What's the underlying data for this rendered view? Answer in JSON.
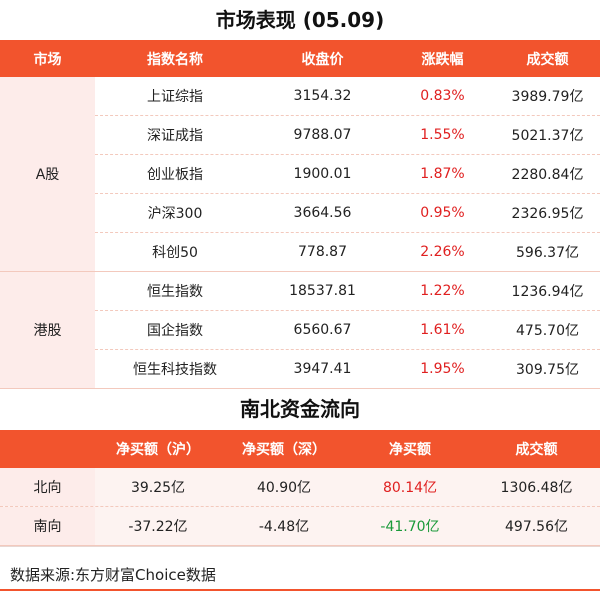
{
  "market": {
    "title": "市场表现 (05.09)",
    "headers": [
      "市场",
      "指数名称",
      "收盘价",
      "涨跌幅",
      "成交额"
    ],
    "groups": [
      {
        "market": "A股",
        "rows": [
          {
            "name": "上证综指",
            "close": "3154.32",
            "change": "0.83%",
            "volume": "3989.79亿",
            "dir": "up"
          },
          {
            "name": "深证成指",
            "close": "9788.07",
            "change": "1.55%",
            "volume": "5021.37亿",
            "dir": "up"
          },
          {
            "name": "创业板指",
            "close": "1900.01",
            "change": "1.87%",
            "volume": "2280.84亿",
            "dir": "up"
          },
          {
            "name": "沪深300",
            "close": "3664.56",
            "change": "0.95%",
            "volume": "2326.95亿",
            "dir": "up"
          },
          {
            "name": "科创50",
            "close": "778.87",
            "change": "2.26%",
            "volume": "596.37亿",
            "dir": "up"
          }
        ]
      },
      {
        "market": "港股",
        "rows": [
          {
            "name": "恒生指数",
            "close": "18537.81",
            "change": "1.22%",
            "volume": "1236.94亿",
            "dir": "up"
          },
          {
            "name": "国企指数",
            "close": "6560.67",
            "change": "1.61%",
            "volume": "475.70亿",
            "dir": "up"
          },
          {
            "name": "恒生科技指数",
            "close": "3947.41",
            "change": "1.95%",
            "volume": "309.75亿",
            "dir": "up"
          }
        ]
      }
    ]
  },
  "flow": {
    "title": "南北资金流向",
    "headers": [
      "",
      "净买额（沪）",
      "净买额（深）",
      "净买额",
      "成交额"
    ],
    "rows": [
      {
        "dir_label": "北向",
        "sh": "39.25亿",
        "sz": "40.90亿",
        "net": "80.14亿",
        "volume": "1306.48亿",
        "net_dir": "up"
      },
      {
        "dir_label": "南向",
        "sh": "-37.22亿",
        "sz": "-4.48亿",
        "net": "-41.70亿",
        "volume": "497.56亿",
        "net_dir": "down"
      }
    ]
  },
  "source": "数据来源:东方财富Choice数据",
  "colors": {
    "accent": "#f2542d",
    "up": "#e02020",
    "down": "#1a9a3a",
    "market_bg": "#fdecea"
  }
}
